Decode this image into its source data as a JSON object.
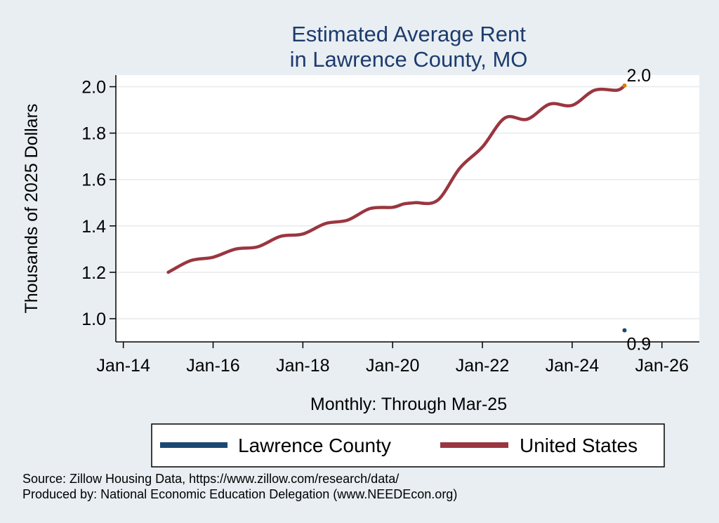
{
  "chart_data": {
    "type": "line",
    "title": [
      "Estimated Average Rent",
      "in Lawrence County, MO"
    ],
    "ylabel": "Thousands of 2025 Dollars",
    "xlabel": "Monthly: Through Mar-25",
    "x_ticks": [
      "Jan-14",
      "Jan-16",
      "Jan-18",
      "Jan-20",
      "Jan-22",
      "Jan-24",
      "Jan-26"
    ],
    "y_ticks": [
      "1.0",
      "1.2",
      "1.4",
      "1.6",
      "1.8",
      "2.0"
    ],
    "ylim": [
      0.9,
      2.05
    ],
    "xlim": [
      "2013-11",
      "2026-11"
    ],
    "grid": true,
    "legend_position": "bottom",
    "series": [
      {
        "name": "Lawrence County",
        "color": "#1a4873",
        "points": [
          {
            "x": "2025-03",
            "y": 0.95
          }
        ],
        "end_label": "0.9"
      },
      {
        "name": "United States",
        "color": "#9a3640",
        "points": [
          {
            "x": "2015-01",
            "y": 1.2
          },
          {
            "x": "2015-07",
            "y": 1.25
          },
          {
            "x": "2016-01",
            "y": 1.265
          },
          {
            "x": "2016-07",
            "y": 1.3
          },
          {
            "x": "2017-01",
            "y": 1.31
          },
          {
            "x": "2017-07",
            "y": 1.355
          },
          {
            "x": "2018-01",
            "y": 1.365
          },
          {
            "x": "2018-07",
            "y": 1.41
          },
          {
            "x": "2019-01",
            "y": 1.425
          },
          {
            "x": "2019-07",
            "y": 1.475
          },
          {
            "x": "2020-01",
            "y": 1.48
          },
          {
            "x": "2020-04",
            "y": 1.495
          },
          {
            "x": "2020-07",
            "y": 1.5
          },
          {
            "x": "2021-01",
            "y": 1.51
          },
          {
            "x": "2021-07",
            "y": 1.65
          },
          {
            "x": "2022-01",
            "y": 1.74
          },
          {
            "x": "2022-07",
            "y": 1.865
          },
          {
            "x": "2023-01",
            "y": 1.86
          },
          {
            "x": "2023-07",
            "y": 1.925
          },
          {
            "x": "2024-01",
            "y": 1.92
          },
          {
            "x": "2024-07",
            "y": 1.985
          },
          {
            "x": "2025-01",
            "y": 1.985
          },
          {
            "x": "2025-03",
            "y": 2.005
          }
        ],
        "end_label": "2.0",
        "end_marker_color": "#e07b00"
      }
    ]
  },
  "source_lines": [
    "Source: Zillow Housing Data, https://www.zillow.com/research/data/",
    "Produced by: National Economic Education Delegation (www.NEEDEcon.org)"
  ]
}
